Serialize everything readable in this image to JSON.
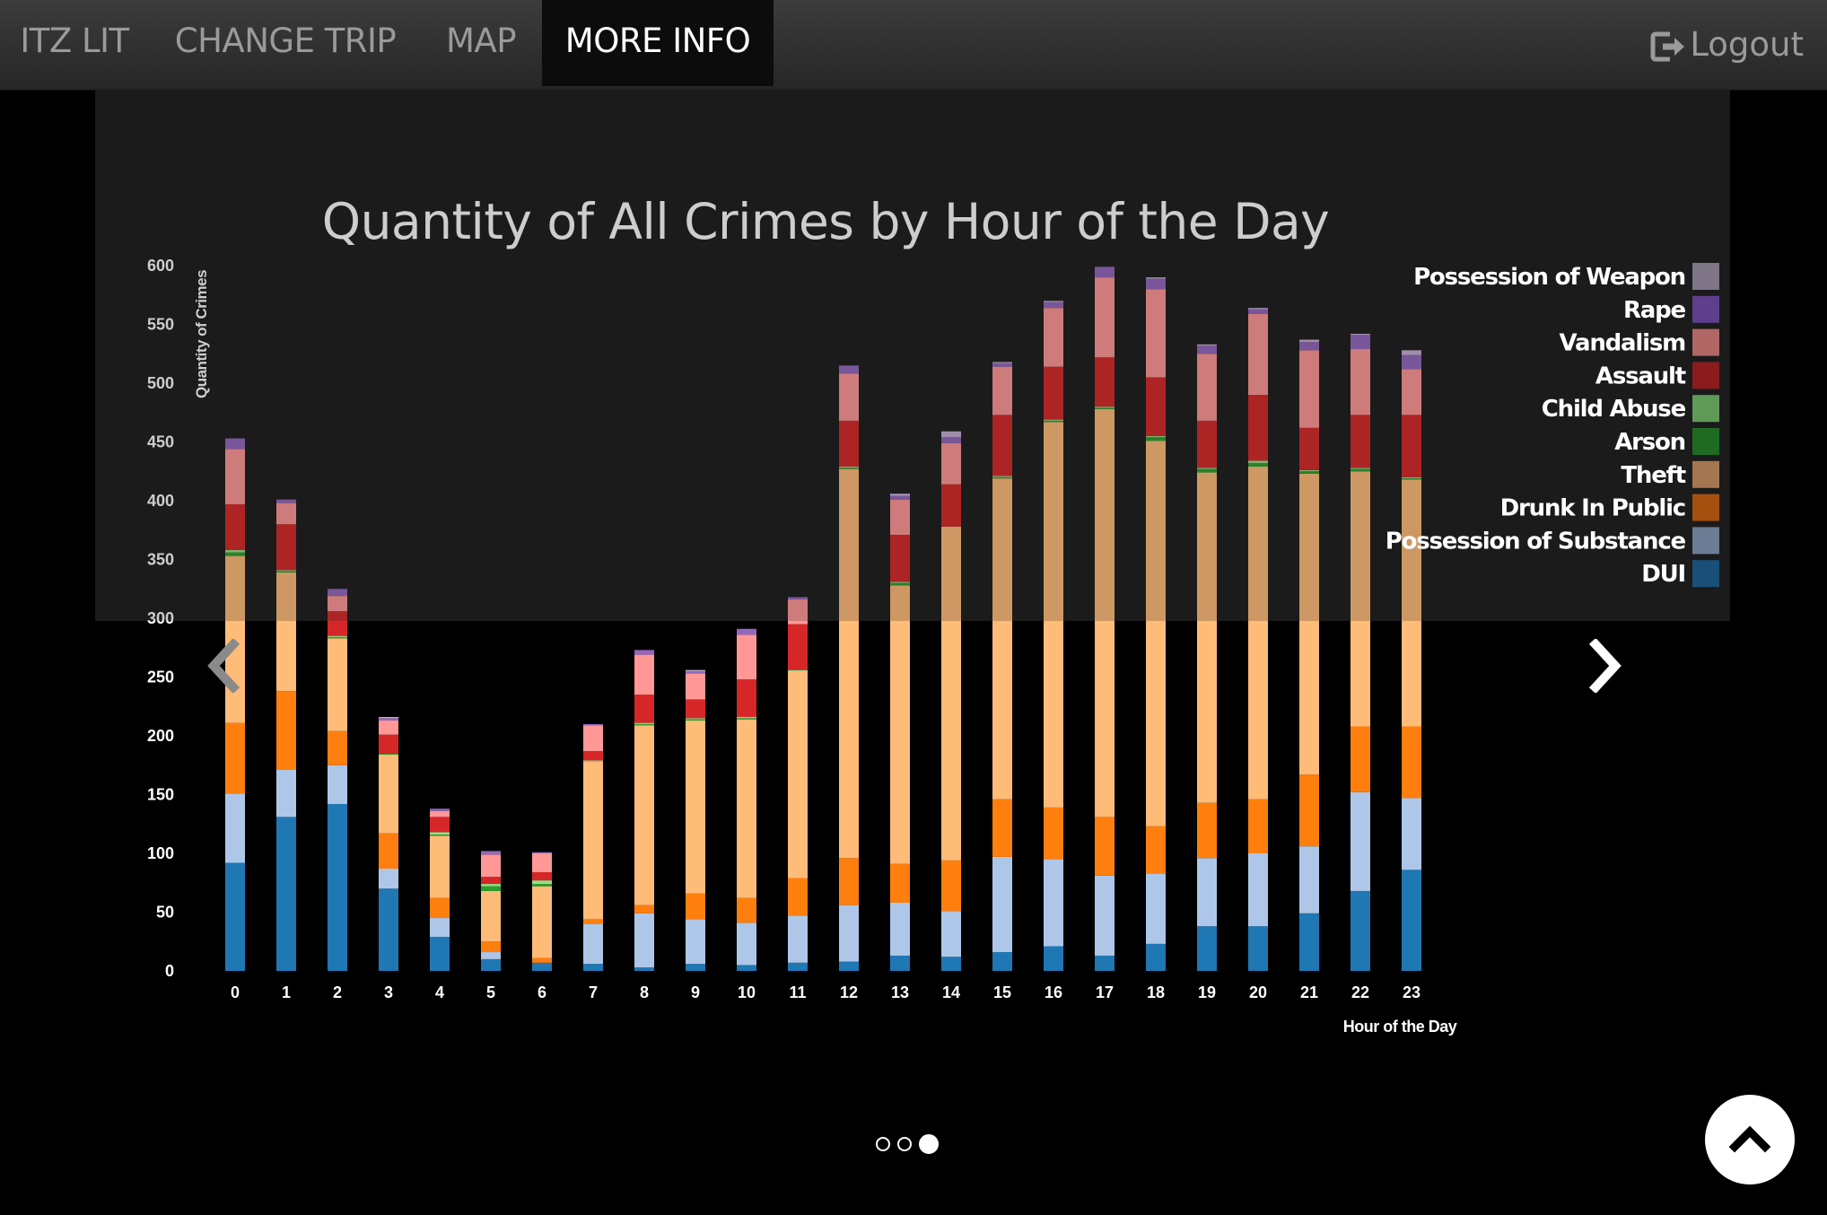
{
  "nav": {
    "items": [
      {
        "label": "ITZ LIT",
        "active": false
      },
      {
        "label": "CHANGE TRIP",
        "active": false
      },
      {
        "label": "MAP",
        "active": false
      },
      {
        "label": "MORE INFO",
        "active": true
      }
    ],
    "logout_label": "Logout",
    "logout_icon": "logout-icon"
  },
  "carousel": {
    "prev_icon": "chevron-left-icon",
    "next_icon": "chevron-right-icon",
    "indicator_count": 3,
    "active_indicator": 2
  },
  "scroll_top_icon": "chevron-up-icon",
  "chart_data": {
    "type": "bar",
    "stacked": true,
    "title": "Quantity of All Crimes by Hour of the Day",
    "xlabel": "Hour of the Day",
    "ylabel": "Quantity of Crimes",
    "ylim": [
      0,
      600
    ],
    "yticks": [
      0,
      50,
      100,
      150,
      200,
      250,
      300,
      350,
      400,
      450,
      500,
      550,
      600
    ],
    "legend_placement": "top-right",
    "categories": [
      "0",
      "1",
      "2",
      "3",
      "4",
      "5",
      "6",
      "7",
      "8",
      "9",
      "10",
      "11",
      "12",
      "13",
      "14",
      "15",
      "16",
      "17",
      "18",
      "19",
      "20",
      "21",
      "22",
      "23"
    ],
    "legend": [
      {
        "name": "Possession of Weapon",
        "color": "#7f7688"
      },
      {
        "name": "Rape",
        "color": "#5e3f8c"
      },
      {
        "name": "Vandalism",
        "color": "#b06765"
      },
      {
        "name": "Assault",
        "color": "#8a1c1e"
      },
      {
        "name": "Child Abuse",
        "color": "#5f9a58"
      },
      {
        "name": "Arson",
        "color": "#1f6a22"
      },
      {
        "name": "Theft",
        "color": "#a57652"
      },
      {
        "name": "Drunk In Public",
        "color": "#a5500e"
      },
      {
        "name": "Possession of Substance",
        "color": "#6c7c95"
      },
      {
        "name": "DUI",
        "color": "#18507a"
      }
    ],
    "series": [
      {
        "name": "DUI",
        "color": "#1f77b4",
        "values": [
          92,
          131,
          142,
          70,
          29,
          10,
          7,
          6,
          3,
          6,
          5,
          7,
          8,
          13,
          12,
          16,
          21,
          13,
          23,
          38,
          38,
          49,
          68,
          86
        ]
      },
      {
        "name": "Possession of Substance",
        "color": "#aec7e8",
        "values": [
          59,
          40,
          33,
          17,
          16,
          6,
          0,
          34,
          46,
          38,
          36,
          40,
          48,
          45,
          39,
          81,
          74,
          68,
          60,
          58,
          62,
          57,
          84,
          61
        ]
      },
      {
        "name": "Drunk In Public",
        "color": "#ff7f0e",
        "values": [
          60,
          67,
          29,
          30,
          17,
          9,
          4,
          4,
          7,
          22,
          21,
          32,
          40,
          33,
          43,
          49,
          44,
          50,
          40,
          47,
          46,
          61,
          56,
          61
        ]
      },
      {
        "name": "Theft",
        "color": "#ffbb78",
        "values": [
          142,
          101,
          79,
          67,
          53,
          43,
          61,
          134,
          153,
          147,
          152,
          176,
          331,
          237,
          284,
          273,
          328,
          347,
          328,
          281,
          283,
          256,
          217,
          210
        ]
      },
      {
        "name": "Arson",
        "color": "#2ca02c",
        "values": [
          3,
          1,
          1,
          1,
          1,
          4,
          2,
          0,
          1,
          1,
          1,
          0,
          1,
          2,
          0,
          1,
          1,
          1,
          3,
          3,
          3,
          2,
          2,
          1
        ]
      },
      {
        "name": "Child Abuse",
        "color": "#98df8a",
        "values": [
          2,
          1,
          1,
          0,
          2,
          2,
          3,
          1,
          1,
          1,
          1,
          1,
          1,
          1,
          0,
          1,
          1,
          1,
          1,
          1,
          2,
          1,
          1,
          1
        ]
      },
      {
        "name": "Assault",
        "color": "#d62728",
        "values": [
          39,
          39,
          21,
          16,
          13,
          6,
          7,
          8,
          24,
          16,
          32,
          39,
          39,
          40,
          36,
          52,
          45,
          42,
          50,
          40,
          56,
          36,
          45,
          53
        ]
      },
      {
        "name": "Vandalism",
        "color": "#ff9896",
        "values": [
          47,
          18,
          13,
          12,
          5,
          19,
          16,
          22,
          34,
          22,
          38,
          21,
          40,
          30,
          35,
          41,
          50,
          68,
          75,
          57,
          69,
          66,
          56,
          39
        ]
      },
      {
        "name": "Rape",
        "color": "#9467bd",
        "values": [
          9,
          3,
          6,
          2,
          2,
          3,
          1,
          1,
          4,
          2,
          5,
          2,
          7,
          3,
          5,
          3,
          5,
          9,
          9,
          7,
          4,
          7,
          12,
          12
        ]
      },
      {
        "name": "Possession of Weapon",
        "color": "#c5b0d5",
        "values": [
          0,
          0,
          0,
          1,
          0,
          0,
          0,
          0,
          0,
          1,
          0,
          0,
          0,
          2,
          5,
          1,
          1,
          0,
          1,
          1,
          1,
          2,
          1,
          4
        ]
      }
    ]
  }
}
